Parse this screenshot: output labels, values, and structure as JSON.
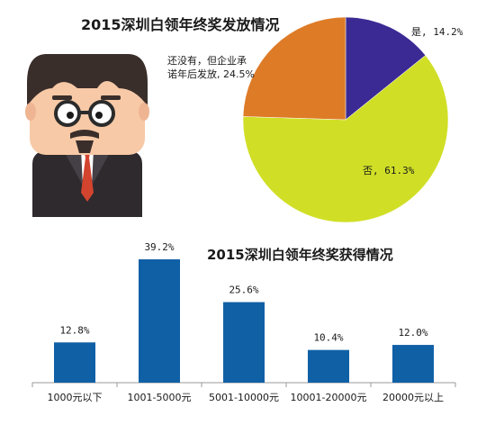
{
  "chart_data": [
    {
      "type": "pie",
      "title": "2015深圳白领年终奖发放情况",
      "slices": [
        {
          "label": "是",
          "value": 14.2,
          "value_label": "14.2%",
          "color": "#3c2a94"
        },
        {
          "label": "否",
          "value": 61.3,
          "value_label": "61.3%",
          "color": "#d0df26"
        },
        {
          "label": "还没有，但企业承诺年后发放",
          "label_lines": [
            "还没有，但企业承",
            "诺年后发放"
          ],
          "value": 24.5,
          "value_label": "24.5%",
          "color": "#de7b27"
        }
      ]
    },
    {
      "type": "bar",
      "title": "2015深圳白领年终奖获得情况",
      "categories": [
        "1000元以下",
        "1001-5000元",
        "5001-10000元",
        "10001-20000元",
        "20000元以上"
      ],
      "values": [
        12.8,
        39.2,
        25.6,
        10.4,
        12.0
      ],
      "value_labels": [
        "12.8%",
        "39.2%",
        "25.6%",
        "10.4%",
        "12.0%"
      ],
      "bar_color": "#1060a6",
      "grid": false
    }
  ],
  "illustration": {
    "icon": "businessman-with-glasses-icon",
    "colors": {
      "hair": "#3a2e2b",
      "skin": "#f7c9a6",
      "suit": "#2e2a2d",
      "tie": "#d3442f"
    }
  }
}
